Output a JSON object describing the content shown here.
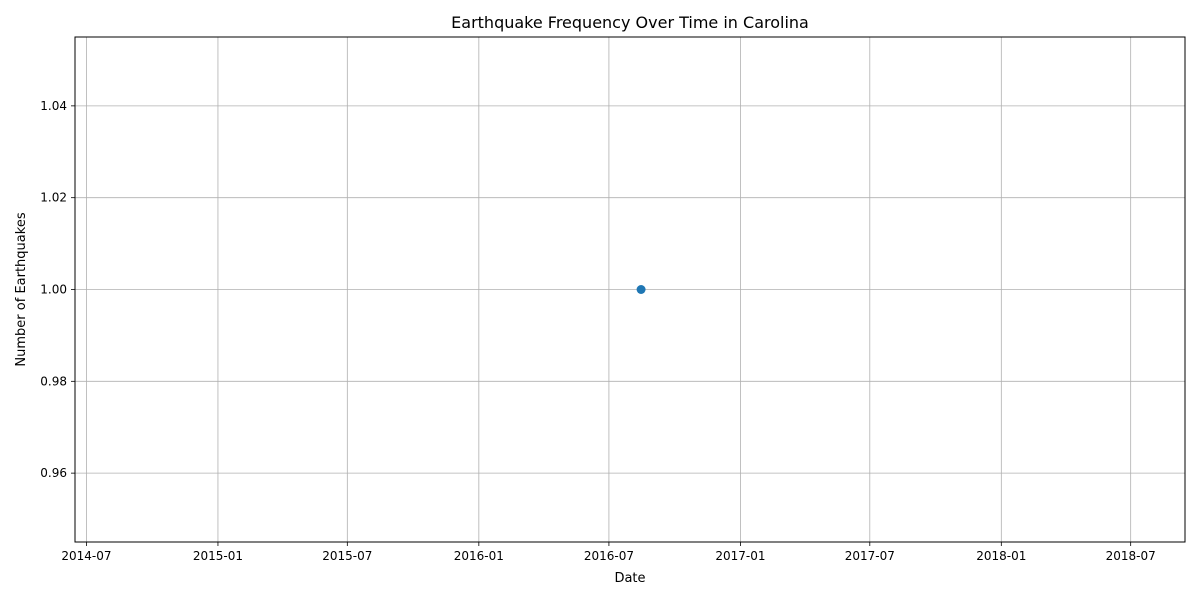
{
  "chart_data": {
    "type": "line",
    "title": "Earthquake Frequency Over Time in Carolina",
    "xlabel": "Date",
    "ylabel": "Number of Earthquakes",
    "x_ticks": [
      "2014-07",
      "2015-01",
      "2015-07",
      "2016-01",
      "2016-07",
      "2017-01",
      "2017-07",
      "2018-01",
      "2018-07"
    ],
    "y_ticks": [
      "0.96",
      "0.98",
      "1.00",
      "1.02",
      "1.04"
    ],
    "xlim": [
      "2014-06-15",
      "2018-09-15"
    ],
    "ylim": [
      0.945,
      1.055
    ],
    "grid": true,
    "series": [
      {
        "color": "#1f77b4",
        "points": [
          {
            "x": "2016-08-15",
            "y": 1.0
          }
        ]
      }
    ]
  }
}
